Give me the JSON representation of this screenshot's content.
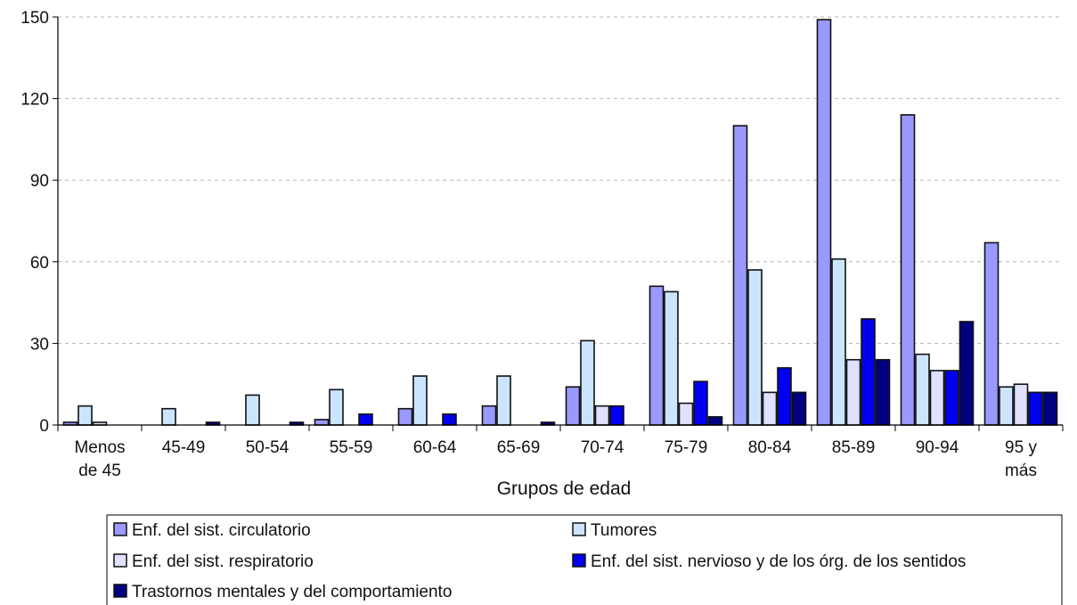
{
  "chart_data": {
    "type": "bar",
    "xlabel": "Grupos de edad",
    "ylabel": "",
    "ylim": [
      0,
      150
    ],
    "yticks": [
      0,
      30,
      60,
      90,
      120,
      150
    ],
    "grid": "horizontal dashed",
    "legend_position": "bottom",
    "categories": [
      [
        "Menos",
        "de 45"
      ],
      [
        "45-49"
      ],
      [
        "50-54"
      ],
      [
        "55-59"
      ],
      [
        "60-64"
      ],
      [
        "65-69"
      ],
      [
        "70-74"
      ],
      [
        "75-79"
      ],
      [
        "80-84"
      ],
      [
        "85-89"
      ],
      [
        "90-94"
      ],
      [
        "95 y",
        "más"
      ]
    ],
    "series": [
      {
        "name": "Enf. del sist. circulatorio",
        "color": "#9999ff",
        "values": [
          1,
          0,
          0,
          2,
          6,
          7,
          14,
          51,
          110,
          149,
          114,
          67
        ]
      },
      {
        "name": "Tumores",
        "color": "#cce5ff",
        "values": [
          7,
          6,
          11,
          13,
          18,
          18,
          31,
          49,
          57,
          61,
          26,
          14
        ]
      },
      {
        "name": "Enf. del sist. respiratorio",
        "color": "#e0e0ff",
        "values": [
          1,
          0,
          0,
          0,
          0,
          0,
          7,
          8,
          12,
          24,
          20,
          15
        ]
      },
      {
        "name": "Enf. del sist. nervioso y de los órg. de los sentidos",
        "color": "#0000ee",
        "values": [
          0,
          0,
          0,
          4,
          4,
          0,
          7,
          16,
          21,
          39,
          20,
          12
        ]
      },
      {
        "name": "Trastornos mentales y del comportamiento",
        "color": "#000080",
        "values": [
          0,
          1,
          1,
          0,
          0,
          1,
          0,
          3,
          12,
          24,
          38,
          12
        ]
      }
    ]
  }
}
